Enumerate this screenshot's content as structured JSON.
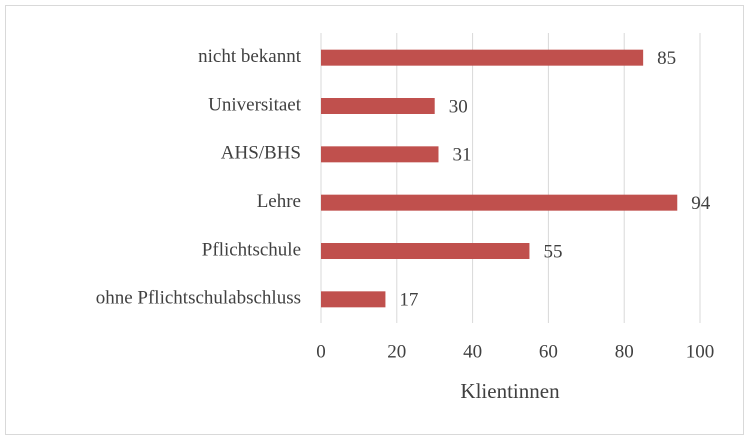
{
  "chart_data": {
    "type": "barh",
    "categories": [
      "nicht bekannt",
      "Universitaet",
      "AHS/BHS",
      "Lehre",
      "Pflichtschule",
      "ohne Pflichtschulabschluss"
    ],
    "values": [
      85,
      30,
      31,
      94,
      55,
      17
    ],
    "color": "#c0504d",
    "xlabel": "Klientinnen",
    "xlim": [
      0,
      100
    ],
    "xticks": [
      0,
      20,
      40,
      60,
      80,
      100
    ],
    "grid": true
  }
}
